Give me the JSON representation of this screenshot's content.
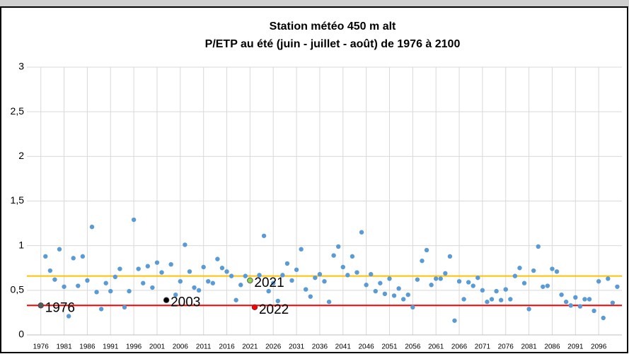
{
  "chart_data": {
    "type": "scatter",
    "title": "Station météo 450 m alt",
    "subtitle": "P/ETP au été (juin - juillet - août) de 1976 à 2100",
    "x": [
      1976,
      1977,
      1978,
      1979,
      1980,
      1981,
      1982,
      1983,
      1984,
      1985,
      1986,
      1987,
      1988,
      1989,
      1990,
      1991,
      1992,
      1993,
      1994,
      1995,
      1996,
      1997,
      1998,
      1999,
      2000,
      2001,
      2002,
      2003,
      2004,
      2005,
      2006,
      2007,
      2008,
      2009,
      2010,
      2011,
      2012,
      2013,
      2014,
      2015,
      2016,
      2017,
      2018,
      2019,
      2020,
      2021,
      2022,
      2023,
      2024,
      2025,
      2026,
      2027,
      2028,
      2029,
      2030,
      2031,
      2032,
      2033,
      2034,
      2035,
      2036,
      2037,
      2038,
      2039,
      2040,
      2041,
      2042,
      2043,
      2044,
      2045,
      2046,
      2047,
      2048,
      2049,
      2050,
      2051,
      2052,
      2053,
      2054,
      2055,
      2056,
      2057,
      2058,
      2059,
      2060,
      2061,
      2062,
      2063,
      2064,
      2065,
      2066,
      2067,
      2068,
      2069,
      2070,
      2071,
      2072,
      2073,
      2074,
      2075,
      2076,
      2077,
      2078,
      2079,
      2080,
      2081,
      2082,
      2083,
      2084,
      2085,
      2086,
      2087,
      2088,
      2089,
      2090,
      2091,
      2092,
      2093,
      2094,
      2095,
      2096,
      2097,
      2098,
      2099,
      2100
    ],
    "series": [
      {
        "color": "#5b9bd5",
        "values": [
          0.33,
          0.88,
          0.72,
          0.62,
          0.96,
          0.54,
          0.21,
          0.86,
          0.55,
          0.88,
          0.61,
          1.21,
          0.48,
          0.29,
          0.58,
          0.49,
          0.65,
          0.74,
          0.31,
          0.49,
          1.29,
          0.74,
          0.58,
          0.77,
          0.53,
          0.81,
          0.7,
          0.39,
          0.79,
          0.45,
          0.6,
          1.01,
          0.71,
          0.53,
          0.5,
          0.76,
          0.6,
          0.58,
          0.85,
          0.75,
          0.71,
          0.66,
          0.39,
          0.56,
          0.66,
          0.61,
          0.31,
          0.67,
          1.11,
          0.49,
          0.58,
          0.38,
          0.67,
          0.8,
          0.61,
          0.73,
          0.96,
          0.51,
          0.43,
          0.64,
          0.68,
          0.6,
          0.37,
          0.89,
          0.99,
          0.76,
          0.67,
          0.88,
          0.7,
          1.15,
          0.56,
          0.68,
          0.49,
          0.58,
          0.46,
          0.63,
          0.44,
          0.52,
          0.4,
          0.45,
          0.31,
          0.62,
          0.83,
          0.95,
          0.56,
          0.63,
          0.63,
          0.69,
          0.88,
          0.16,
          0.6,
          0.4,
          0.59,
          0.55,
          0.64,
          0.5,
          0.37,
          0.4,
          0.49,
          0.39,
          0.51,
          0.4,
          0.66,
          0.75,
          0.58,
          0.29,
          0.72,
          0.99,
          0.54,
          0.55,
          0.74,
          0.71,
          0.45,
          0.37,
          0.33,
          0.42,
          0.32,
          0.4,
          0.4,
          0.27,
          0.6,
          0.19,
          0.63,
          0.36,
          0.54
        ]
      }
    ],
    "hlines": [
      {
        "value": 0.66,
        "color": "#ffc000"
      },
      {
        "value": 0.33,
        "color": "#ff0000"
      }
    ],
    "annotations": [
      {
        "label": "1976",
        "x": 1976,
        "y": 0.33,
        "color": "#595959"
      },
      {
        "label": "2003",
        "x": 2003,
        "y": 0.39,
        "color": "#000000"
      },
      {
        "label": "2021",
        "x": 2021,
        "y": 0.61,
        "color": "#92d050"
      },
      {
        "label": "2022",
        "x": 2022,
        "y": 0.31,
        "color": "#ff0000"
      }
    ],
    "xlim": [
      1973,
      2101
    ],
    "xticks": [
      1976,
      1981,
      1986,
      1991,
      1996,
      2001,
      2006,
      2011,
      2016,
      2021,
      2026,
      2031,
      2036,
      2041,
      2046,
      2051,
      2056,
      2061,
      2066,
      2071,
      2076,
      2081,
      2086,
      2091,
      2096
    ],
    "ylim": [
      0,
      3
    ],
    "yticks": [
      0,
      {
        "value": 0.5,
        "label": "0,5"
      },
      1,
      {
        "value": 1.5,
        "label": "1,5"
      },
      2,
      {
        "value": 2.5,
        "label": "2,5"
      },
      3
    ],
    "grid": true
  }
}
